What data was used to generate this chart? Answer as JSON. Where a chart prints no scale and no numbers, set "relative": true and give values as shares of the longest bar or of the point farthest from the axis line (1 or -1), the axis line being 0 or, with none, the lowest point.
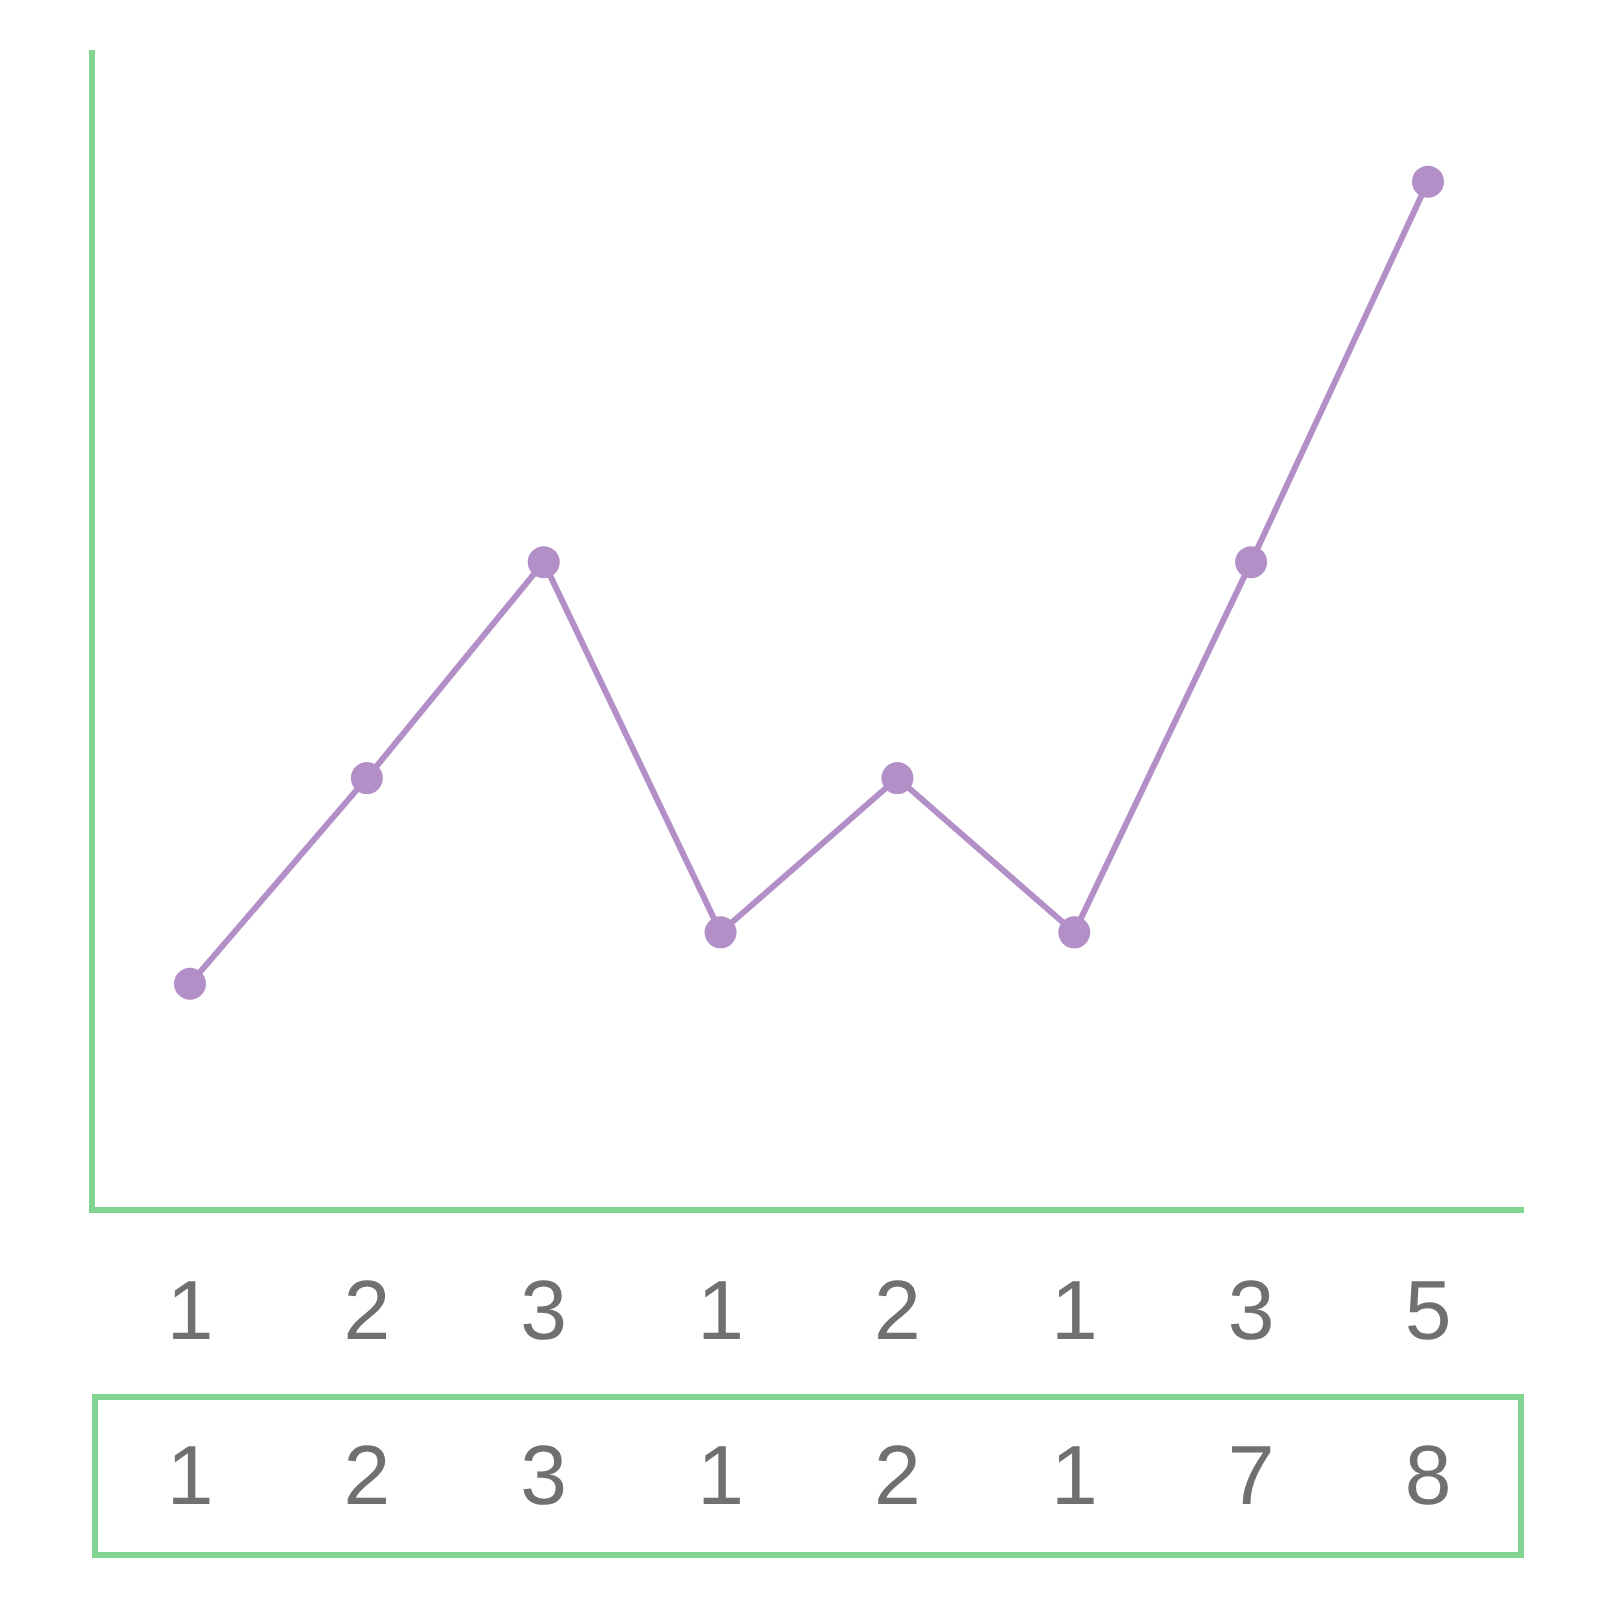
{
  "chart_data": {
    "type": "line",
    "relative": true,
    "categories": [
      "1",
      "2",
      "3",
      "1",
      "2",
      "1",
      "3",
      "5"
    ],
    "series": [
      {
        "color": "#b38fc7",
        "values": [
          0.22,
          0.42,
          0.63,
          0.27,
          0.42,
          0.27,
          0.63,
          1
        ]
      }
    ],
    "marker": "circle",
    "line_style": "solid",
    "annotations": [
      "1",
      "2",
      "3",
      "1",
      "2",
      "1",
      "7",
      "8"
    ]
  }
}
